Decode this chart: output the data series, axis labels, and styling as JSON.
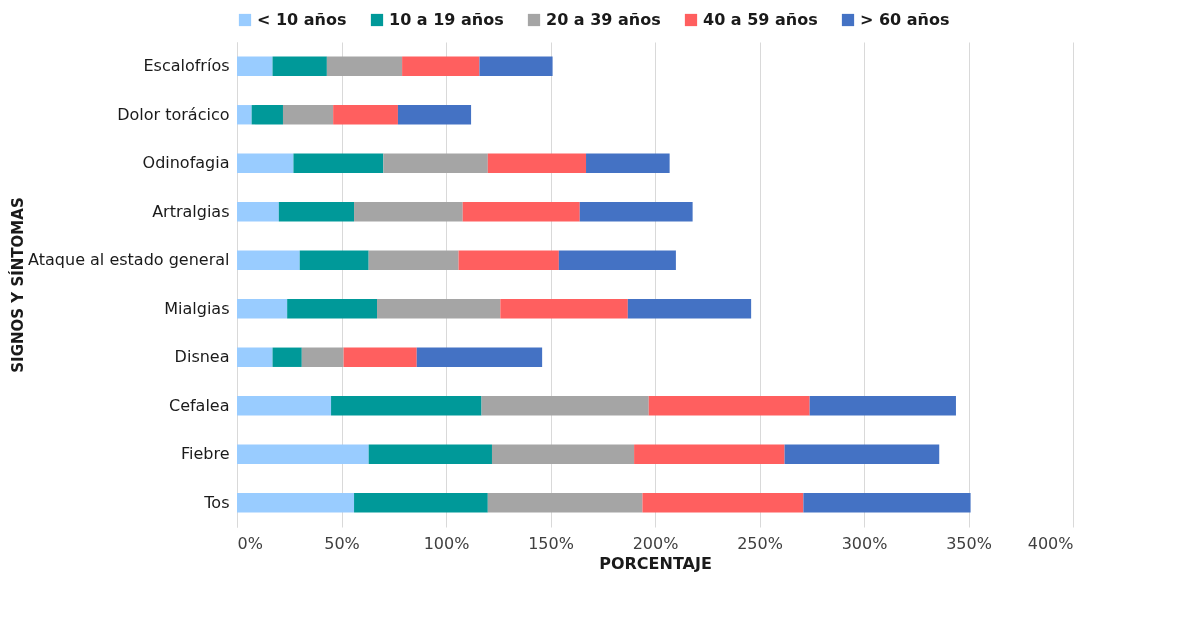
{
  "chart_data": {
    "type": "bar",
    "orientation": "horizontal",
    "stacked": true,
    "xlabel": "PORCENTAJE",
    "ylabel": "SIGNOS Y SÍNTOMAS",
    "categories": [
      "Escalofríos",
      "Dolor torácico",
      "Odinofagia",
      "Artralgias",
      "Ataque al estado general",
      "Mialgias",
      "Disnea",
      "Cefalea",
      "Fiebre",
      "Tos"
    ],
    "series": [
      {
        "name": "< 10 años",
        "color": "#99ccff",
        "values": [
          17,
          7,
          27,
          20,
          30,
          24,
          17,
          45,
          63,
          56
        ]
      },
      {
        "name": "10 a 19 años",
        "color": "#009999",
        "values": [
          26,
          15,
          43,
          36,
          33,
          43,
          14,
          72,
          59,
          64
        ]
      },
      {
        "name": "20 a 39 años",
        "color": "#a5a5a5",
        "values": [
          36,
          24,
          50,
          52,
          43,
          59,
          20,
          80,
          68,
          74
        ]
      },
      {
        "name": "40 a 59 años",
        "color": "#ff5f5f",
        "values": [
          37,
          31,
          47,
          56,
          48,
          61,
          35,
          77,
          72,
          77
        ]
      },
      {
        "name": "> 60 años",
        "color": "#4472c4",
        "values": [
          35,
          35,
          40,
          54,
          56,
          59,
          60,
          70,
          74,
          80
        ]
      }
    ],
    "xlim": [
      0,
      400
    ],
    "xticks": [
      {
        "value": 0,
        "label": "0%"
      },
      {
        "value": 50,
        "label": "50%"
      },
      {
        "value": 100,
        "label": "100%"
      },
      {
        "value": 150,
        "label": "150%"
      },
      {
        "value": 200,
        "label": "200%"
      },
      {
        "value": 250,
        "label": "250%"
      },
      {
        "value": 300,
        "label": "300%"
      },
      {
        "value": 350,
        "label": "350%"
      },
      {
        "value": 400,
        "label": "400%"
      }
    ],
    "grid": "x",
    "legend": "top"
  }
}
